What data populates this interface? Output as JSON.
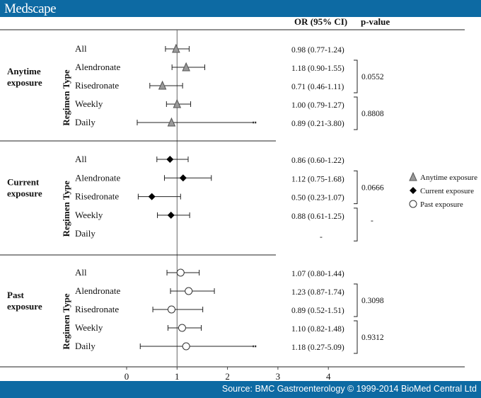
{
  "header": {
    "logo": "Medscape"
  },
  "footer": {
    "source": "Source: BMC Gastroenterology © 1999-2014 BioMed Central Ltd"
  },
  "colors": {
    "bar": "#0d6aa3",
    "anytime": "#999999",
    "current": "#000000",
    "past": "#ffffff"
  },
  "chart_data": {
    "type": "forest",
    "column_headers": [
      "OR (95% CI)",
      "p-value"
    ],
    "regimen_label": "Regimen Type",
    "xaxis": {
      "ticks": [
        0,
        1,
        2,
        3,
        4
      ],
      "xlim": [
        0,
        6.5
      ],
      "reference_line": 1,
      "truncated_at": 2.5
    },
    "legend": {
      "placement": "right",
      "entries": [
        {
          "label": "Anytime exposure",
          "marker": "triangle"
        },
        {
          "label": "Current exposure",
          "marker": "diamond"
        },
        {
          "label": "Past exposure",
          "marker": "circle"
        }
      ]
    },
    "groups": [
      {
        "label": [
          "Anytime",
          "exposure"
        ],
        "marker": "triangle",
        "rows": [
          {
            "label": "All",
            "or": 0.98,
            "lo": 0.77,
            "hi": 1.24,
            "text": "0.98 (0.77-1.24)"
          },
          {
            "label": "Alendronate",
            "or": 1.18,
            "lo": 0.9,
            "hi": 1.55,
            "text": "1.18 (0.90-1.55)"
          },
          {
            "label": "Risedronate",
            "or": 0.71,
            "lo": 0.46,
            "hi": 1.11,
            "text": "0.71 (0.46-1.11)"
          },
          {
            "label": "Weekly",
            "or": 1.0,
            "lo": 0.79,
            "hi": 1.27,
            "text": "1.00 (0.79-1.27)"
          },
          {
            "label": "Daily",
            "or": 0.89,
            "lo": 0.21,
            "hi": 3.8,
            "text": "0.89 (0.21-3.80)"
          }
        ],
        "pvalues": [
          "0.0552",
          "0.8808"
        ]
      },
      {
        "label": [
          "Current",
          "exposure"
        ],
        "marker": "diamond",
        "rows": [
          {
            "label": "All",
            "or": 0.86,
            "lo": 0.6,
            "hi": 1.22,
            "text": "0.86 (0.60-1.22)"
          },
          {
            "label": "Alendronate",
            "or": 1.12,
            "lo": 0.75,
            "hi": 1.68,
            "text": "1.12 (0.75-1.68)"
          },
          {
            "label": "Risedronate",
            "or": 0.5,
            "lo": 0.23,
            "hi": 1.07,
            "text": "0.50 (0.23-1.07)"
          },
          {
            "label": "Weekly",
            "or": 0.88,
            "lo": 0.61,
            "hi": 1.25,
            "text": "0.88 (0.61-1.25)"
          },
          {
            "label": "Daily",
            "or": null,
            "lo": null,
            "hi": null,
            "text": "-"
          }
        ],
        "pvalues": [
          "0.0666",
          "-"
        ]
      },
      {
        "label": [
          "Past",
          "exposure"
        ],
        "marker": "circle",
        "rows": [
          {
            "label": "All",
            "or": 1.07,
            "lo": 0.8,
            "hi": 1.44,
            "text": "1.07 (0.80-1.44)"
          },
          {
            "label": "Alendronate",
            "or": 1.23,
            "lo": 0.87,
            "hi": 1.74,
            "text": "1.23 (0.87-1.74)"
          },
          {
            "label": "Risedronate",
            "or": 0.89,
            "lo": 0.52,
            "hi": 1.51,
            "text": "0.89 (0.52-1.51)"
          },
          {
            "label": "Weekly",
            "or": 1.1,
            "lo": 0.82,
            "hi": 1.48,
            "text": "1.10 (0.82-1.48)"
          },
          {
            "label": "Daily",
            "or": 1.18,
            "lo": 0.27,
            "hi": 5.09,
            "text": "1.18 (0.27-5.09)"
          }
        ],
        "pvalues": [
          "0.3098",
          "0.9312"
        ]
      }
    ]
  }
}
